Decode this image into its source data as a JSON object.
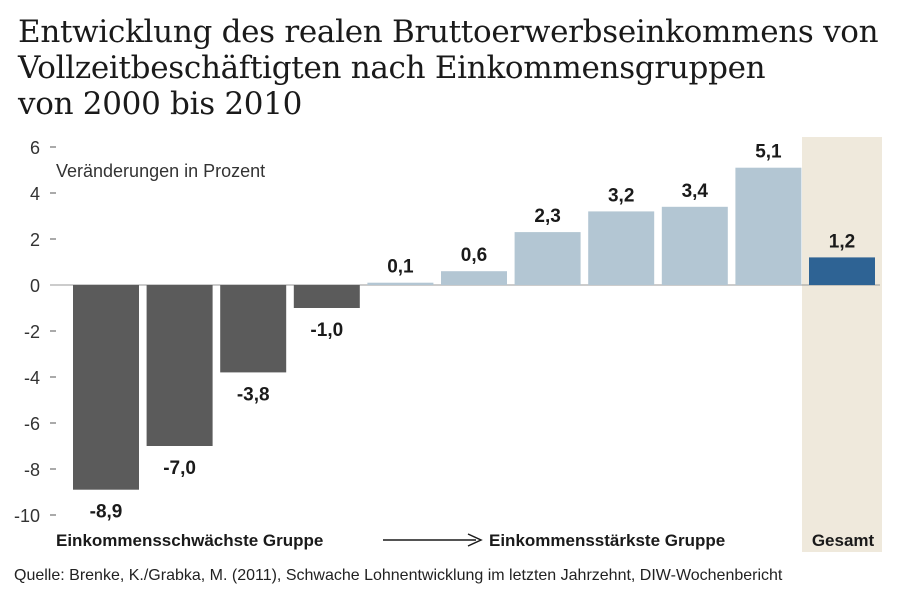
{
  "title_lines": [
    "Entwicklung des realen Bruttoerwerbseinkommens von",
    "Vollzeitbeschäftigten nach Einkommensgruppen",
    "von 2000 bis 2010"
  ],
  "source": "Quelle: Brenke, K./Grabka, M. (2011), Schwache Lohnentwicklung im letzten Jahrzehnt, DIW-Wochenbericht",
  "chart_data": {
    "type": "bar",
    "title": "Entwicklung des realen Bruttoerwerbseinkommens von Vollzeitbeschäftigten nach Einkommensgruppen von 2000 bis 2010",
    "annotation": "Veränderungen in Prozent",
    "ylim": [
      -10,
      6
    ],
    "yticks": [
      6,
      4,
      2,
      0,
      -2,
      -4,
      -6,
      -8,
      -10
    ],
    "values": [
      -8.9,
      -7.0,
      -3.8,
      -1.0,
      0.1,
      0.6,
      2.3,
      3.2,
      3.4,
      5.1,
      1.2
    ],
    "value_labels": [
      "-8,9",
      "-7,0",
      "-3,8",
      "-1,0",
      "0,1",
      "0,6",
      "2,3",
      "3,2",
      "3,4",
      "5,1",
      "1,2"
    ],
    "category_labels": {
      "low": "Einkommensschwächste Gruppe",
      "high": "Einkommensstärkste Gruppe",
      "total": "Gesamt"
    },
    "colors": {
      "negative": "#5b5b5b",
      "positive": "#b3c6d3",
      "total": "#2e6394",
      "total_background": "#efe9dc",
      "axis": "#555555"
    },
    "grid": false
  }
}
